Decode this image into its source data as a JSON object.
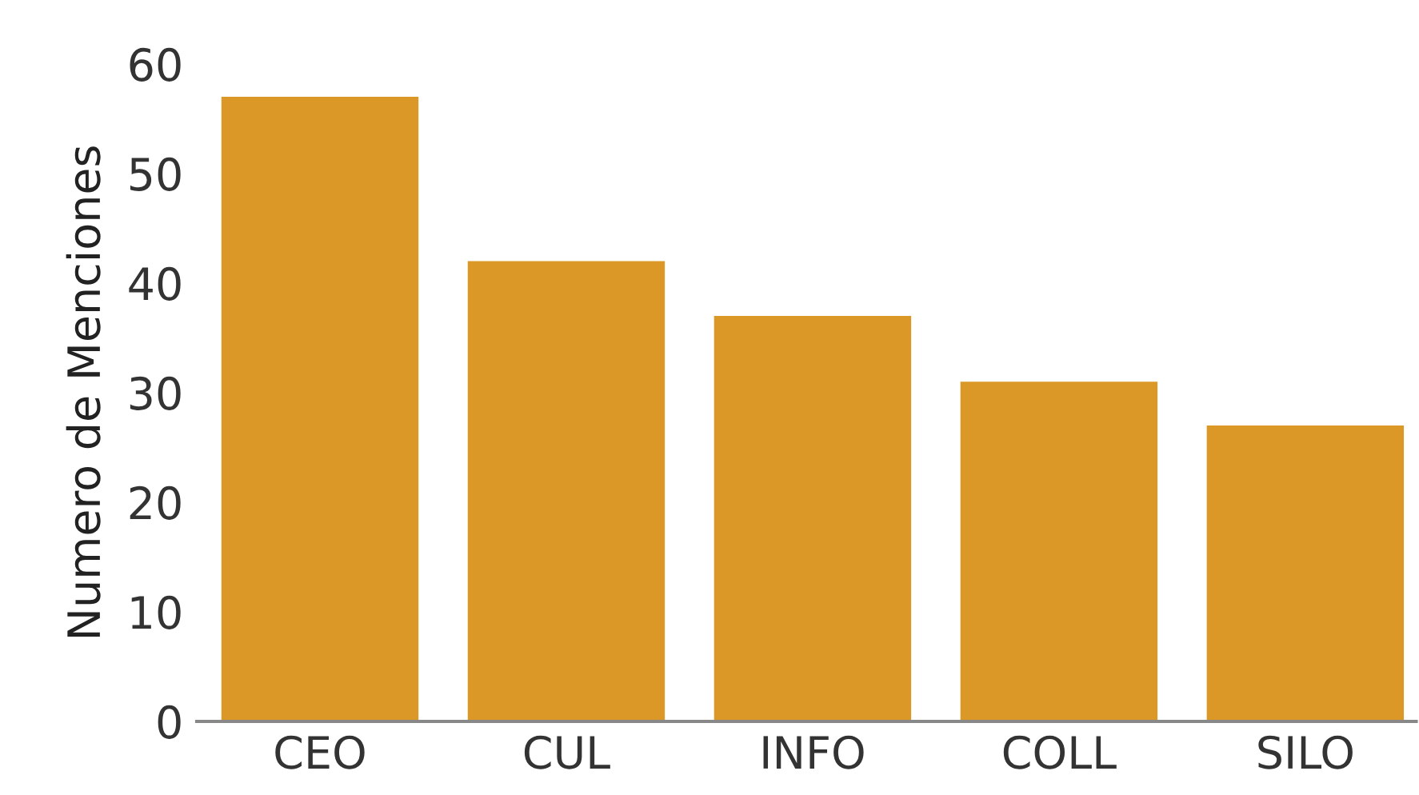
{
  "chart_data": {
    "type": "bar",
    "ylabel": "Numero de Menciones",
    "categories": [
      "CEO",
      "CUL",
      "INFO",
      "COLL",
      "SILO"
    ],
    "values": [
      57,
      42,
      37,
      31,
      27
    ],
    "color": "#db9826",
    "ylim": [
      0,
      60
    ],
    "yticks": [
      0,
      10,
      20,
      30,
      40,
      50,
      60
    ],
    "grid": false
  }
}
